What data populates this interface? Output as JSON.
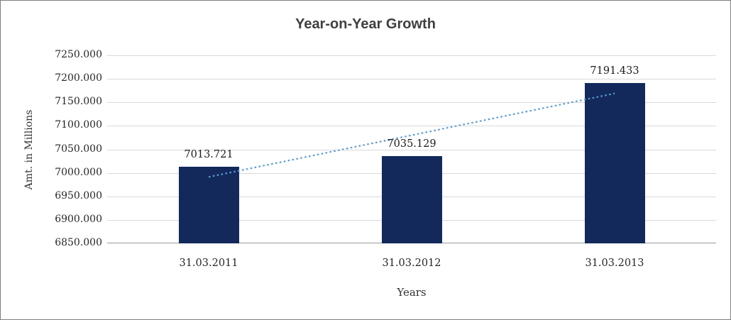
{
  "chart_data": {
    "type": "bar",
    "title": "Year-on-Year Growth",
    "xlabel": "Years",
    "ylabel": "Amt. in Millions",
    "categories": [
      "31.03.2011",
      "31.03.2012",
      "31.03.2013"
    ],
    "values": [
      7013.721,
      7035.129,
      7191.433
    ],
    "value_labels": [
      "7013.721",
      "7035.129",
      "7191.433"
    ],
    "ylim": [
      6850,
      7250
    ],
    "ytick_step": 50,
    "ytick_labels": [
      "6850.000",
      "6900.000",
      "6950.000",
      "7000.000",
      "7050.000",
      "7100.000",
      "7150.000",
      "7200.000",
      "7250.000"
    ],
    "grid": true,
    "legend": "none",
    "trendline": "linear",
    "colors": {
      "bar": "#13295c",
      "trendline": "#5b9bd5",
      "gridline": "#d9d9d9",
      "title_text": "#3f3f3f",
      "tick_text": "#262626",
      "background": "#ffffff"
    }
  }
}
